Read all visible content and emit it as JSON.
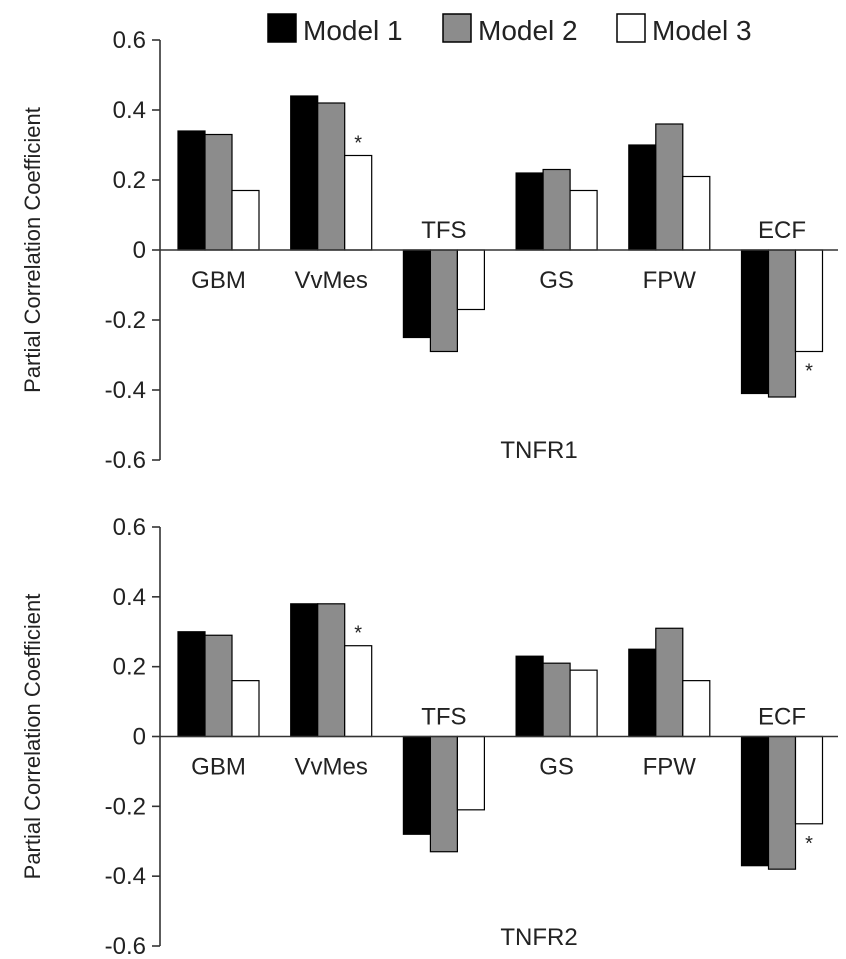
{
  "legend": {
    "items": [
      {
        "label": "Model 1",
        "color": "#000000"
      },
      {
        "label": "Model 2",
        "color": "#8c8c8c"
      },
      {
        "label": "Model 3",
        "color": "#ffffff"
      }
    ]
  },
  "chart_data": [
    {
      "type": "bar",
      "title": "TNFR1",
      "xlabel": "",
      "ylabel": "Partial Correlation Coefficient",
      "ylim": [
        -0.6,
        0.6
      ],
      "yticks": [
        "0.6",
        "0.4",
        "0.2",
        "0",
        "-0.2",
        "-0.4",
        "-0.6"
      ],
      "categories": [
        "GBM",
        "VvMes",
        "TFS",
        "GS",
        "FPW",
        "ECF"
      ],
      "series": [
        {
          "name": "Model 1",
          "color": "#000000",
          "values": [
            0.34,
            0.44,
            -0.25,
            0.22,
            0.3,
            -0.41
          ]
        },
        {
          "name": "Model 2",
          "color": "#8c8c8c",
          "values": [
            0.33,
            0.42,
            -0.29,
            0.23,
            0.36,
            -0.42
          ]
        },
        {
          "name": "Model 3",
          "color": "#ffffff",
          "values": [
            0.17,
            0.27,
            -0.17,
            0.17,
            0.21,
            -0.29
          ]
        }
      ],
      "annotations": [
        {
          "text": "*",
          "category": "VvMes",
          "series": "Model 3"
        },
        {
          "text": "*",
          "category": "ECF",
          "series": "Model 3"
        }
      ],
      "legend": "top-right",
      "grid": false
    },
    {
      "type": "bar",
      "title": "TNFR2",
      "xlabel": "",
      "ylabel": "Partial Correlation Coefficient",
      "ylim": [
        -0.6,
        0.6
      ],
      "yticks": [
        "0.6",
        "0.4",
        "0.2",
        "0",
        "-0.2",
        "-0.4",
        "-0.6"
      ],
      "categories": [
        "GBM",
        "VvMes",
        "TFS",
        "GS",
        "FPW",
        "ECF"
      ],
      "series": [
        {
          "name": "Model 1",
          "color": "#000000",
          "values": [
            0.3,
            0.38,
            -0.28,
            0.23,
            0.25,
            -0.37
          ]
        },
        {
          "name": "Model 2",
          "color": "#8c8c8c",
          "values": [
            0.29,
            0.38,
            -0.33,
            0.21,
            0.31,
            -0.38
          ]
        },
        {
          "name": "Model 3",
          "color": "#ffffff",
          "values": [
            0.16,
            0.26,
            -0.21,
            0.19,
            0.16,
            -0.25
          ]
        }
      ],
      "annotations": [
        {
          "text": "*",
          "category": "VvMes",
          "series": "Model 3"
        },
        {
          "text": "*",
          "category": "ECF",
          "series": "Model 3"
        }
      ],
      "legend": "top-right",
      "grid": false
    }
  ]
}
